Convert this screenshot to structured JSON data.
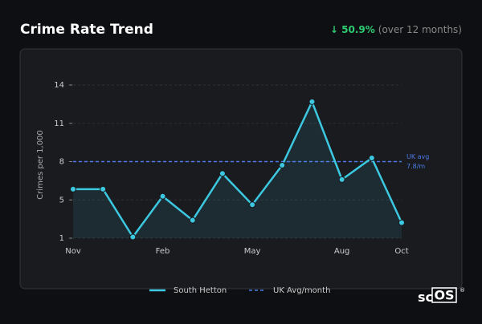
{
  "header": {
    "title": "Crime Rate Trend",
    "change": "↓ 50.9%",
    "period": "(over 12 months)"
  },
  "chart_data": {
    "type": "line",
    "ylabel": "Crimes per 1,000",
    "categories": [
      "Nov",
      null,
      null,
      "Feb",
      null,
      null,
      "May",
      null,
      null,
      "Aug",
      null,
      "Oct"
    ],
    "series": [
      {
        "name": "South Hetton",
        "color": "#3cc8e0",
        "values": [
          5.5,
          5.5,
          1.5,
          4.9,
          2.9,
          6.8,
          4.2,
          7.5,
          12.8,
          6.3,
          8.1,
          2.7
        ]
      }
    ],
    "reference": {
      "name": "UK Avg/month",
      "value": 7.8,
      "color": "#4a7be8",
      "label": [
        "UK avg",
        "7.8/m"
      ]
    },
    "ylim": [
      1.4,
      14.2
    ],
    "yticks": [
      {
        "value": 1.4,
        "label": "1"
      },
      {
        "value": 4.6,
        "label": "5"
      },
      {
        "value": 7.8,
        "label": "8"
      },
      {
        "value": 11.0,
        "label": "11"
      },
      {
        "value": 14.2,
        "label": "14"
      }
    ],
    "grid": true
  },
  "brand": {
    "text": "sc",
    "boxed": "OS",
    "mark": "®"
  }
}
